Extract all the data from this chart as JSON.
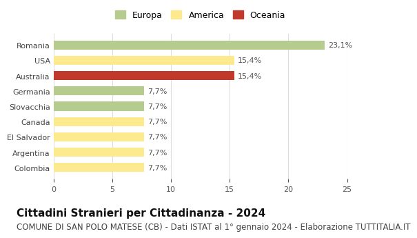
{
  "categories": [
    "Romania",
    "USA",
    "Australia",
    "Germania",
    "Slovacchia",
    "Canada",
    "El Salvador",
    "Argentina",
    "Colombia"
  ],
  "values": [
    23.1,
    15.4,
    15.4,
    7.7,
    7.7,
    7.7,
    7.7,
    7.7,
    7.7
  ],
  "labels": [
    "23,1%",
    "15,4%",
    "15,4%",
    "7,7%",
    "7,7%",
    "7,7%",
    "7,7%",
    "7,7%",
    "7,7%"
  ],
  "colors": [
    "#b5cc8e",
    "#fde98e",
    "#c0392b",
    "#b5cc8e",
    "#b5cc8e",
    "#fde98e",
    "#fde98e",
    "#fde98e",
    "#fde98e"
  ],
  "legend": [
    {
      "label": "Europa",
      "color": "#b5cc8e"
    },
    {
      "label": "America",
      "color": "#fde98e"
    },
    {
      "label": "Oceania",
      "color": "#c0392b"
    }
  ],
  "xlim": [
    0,
    25
  ],
  "xticks": [
    0,
    5,
    10,
    15,
    20,
    25
  ],
  "title": "Cittadini Stranieri per Cittadinanza - 2024",
  "subtitle": "COMUNE DI SAN POLO MATESE (CB) - Dati ISTAT al 1° gennaio 2024 - Elaborazione TUTTITALIA.IT",
  "background_color": "#ffffff",
  "grid_color": "#dddddd",
  "bar_height": 0.6,
  "title_fontsize": 11,
  "subtitle_fontsize": 8.5,
  "label_fontsize": 8,
  "tick_fontsize": 8,
  "legend_fontsize": 9
}
